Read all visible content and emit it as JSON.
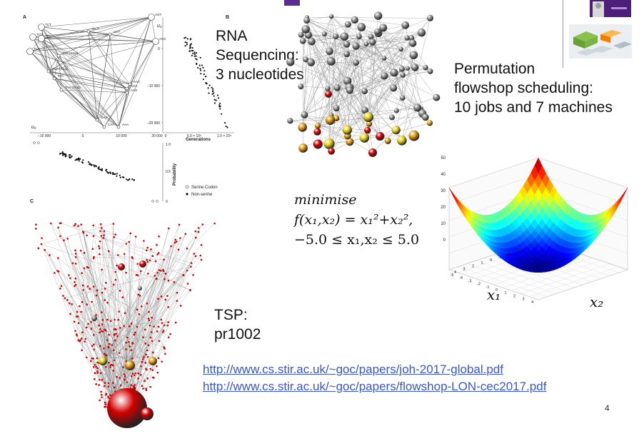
{
  "examples": {
    "rna": {
      "title": "RNA\nSequencing:\n3 nucleotides"
    },
    "flowshop": {
      "title": "Permutation\nflowshop scheduling:\n10 jobs and 7 machines"
    },
    "tsp": {
      "title": "TSP:\npr1002"
    },
    "function": {
      "minimise": "minimise",
      "objective": "f(x₁,x₂) = x₁²+x₂²,",
      "constraint": "−5.0 ≤ x₁,x₂ ≤ 5.0"
    }
  },
  "rna_figure": {
    "panel_a": "A",
    "panel_b": "B",
    "panel_c": "C",
    "u3": "u₃",
    "u2": "u₂",
    "generations": "Generations",
    "probability": "Probability",
    "legend_serine": "Serine Codon",
    "legend_non_serine": "Non-serine",
    "y_ticks": [
      "0",
      "−10 000",
      "−20 000"
    ],
    "x_ticks_gen": [
      "0",
      "5.0 × 10⁵",
      "1.0 × 10⁶"
    ],
    "x_ticks_u2": [
      "−10 000",
      "0",
      "10 000",
      "20 000"
    ],
    "prob_ticks": [
      "1.0",
      "0.5",
      "0"
    ],
    "codons": [
      "AGT",
      "TCT",
      "TCG",
      "TCC",
      "TCA",
      "GCT",
      "CCT",
      "AGC",
      "TAG (Stop)",
      "TGA (Stop)",
      "TTA",
      "TAA (Stop)",
      "AAC",
      "AGA",
      "AAG",
      "GAA",
      "CAA",
      "AAA"
    ]
  },
  "surface_plot": {
    "z_ticks": [
      "50",
      "40",
      "30",
      "20",
      "10",
      "0"
    ],
    "x1_ticks": [
      "4",
      "3",
      "2",
      "1",
      "0",
      "-1",
      "-2",
      "-3",
      "-4",
      "-5"
    ],
    "x2_ticks": [
      "-5",
      "-4",
      "-3",
      "-2",
      "-1",
      "0",
      "1",
      "2",
      "3",
      "4"
    ],
    "x1_label": "x₁",
    "x2_label": "x₂"
  },
  "links": [
    "http://www.cs.stir.ac.uk/~goc/papers/joh-2017-global.pdf",
    "http://www.cs.stir.ac.uk/~goc/papers/flowshop-LON-cec2017.pdf"
  ],
  "page_number": "4",
  "colors": {
    "link": "#3b57c8",
    "header_accent": "#5b2d8e",
    "node_gray": "#8c8c8c",
    "node_red": "#d40000",
    "node_orange": "#e39a12",
    "node_yellow": "#e6d220"
  }
}
